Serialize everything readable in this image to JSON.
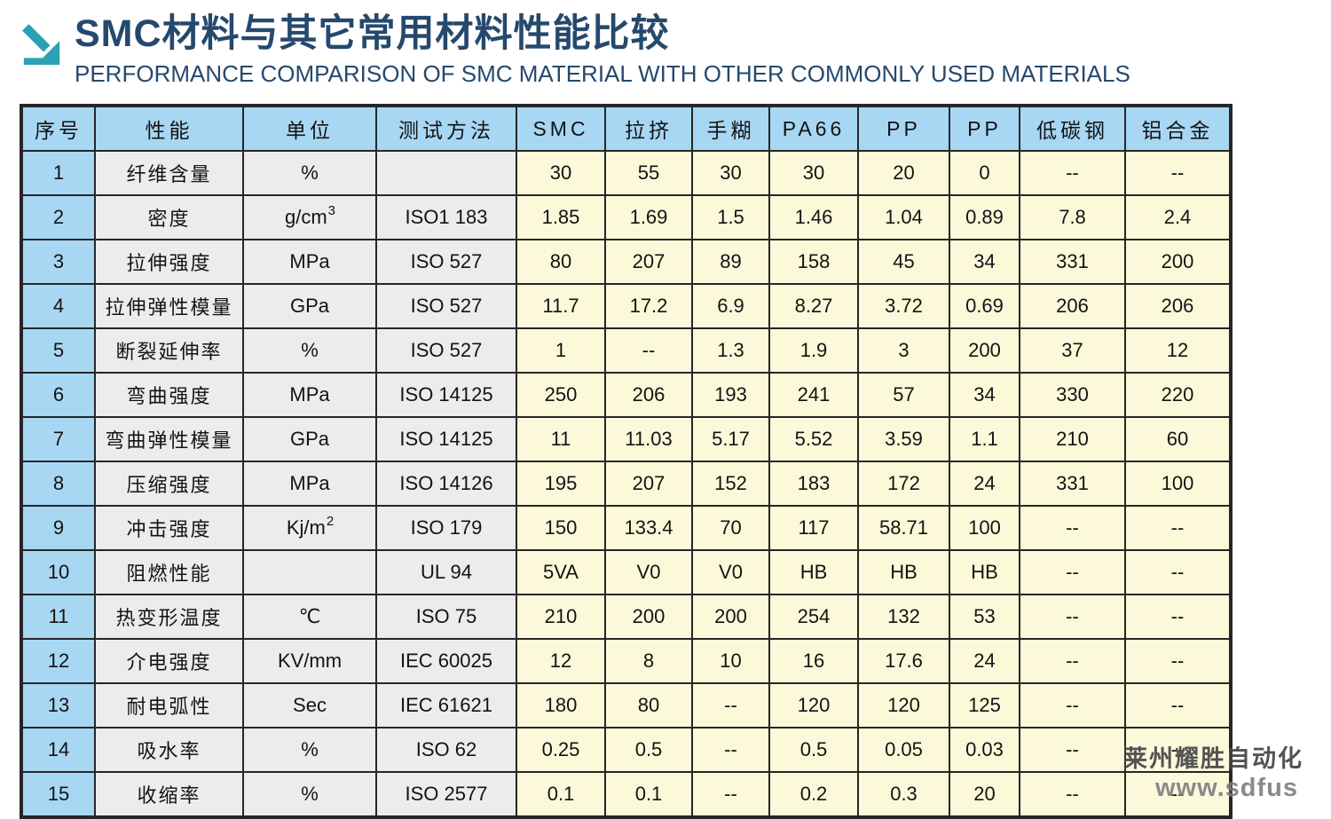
{
  "header": {
    "title": "SMC材料与其它常用材料性能比较",
    "subtitle": "PERFORMANCE COMPARISON OF SMC MATERIAL WITH OTHER COMMONLY USED MATERIALS",
    "title_color": "#25496d",
    "arrow_icon": "diagonal-arrow-down-right",
    "arrow_color": "#2aa2b4"
  },
  "table": {
    "columns": [
      "序号",
      "性能",
      "单位",
      "测试方法",
      "SMC",
      "拉挤",
      "手糊",
      "PA66",
      "PP",
      "PP",
      "低碳钢",
      "铝合金"
    ],
    "colors": {
      "header_bg": "#a8d7f3",
      "label_bg": "#ececec",
      "value_bg": "#fcf9da",
      "border": "#262626"
    },
    "rows": [
      {
        "no": "1",
        "property": "纤维含量",
        "unit": "%",
        "unit_sup": "",
        "method": "",
        "values": [
          "30",
          "55",
          "30",
          "30",
          "20",
          "0",
          "--",
          "--"
        ]
      },
      {
        "no": "2",
        "property": "密度",
        "unit": "g/cm",
        "unit_sup": "3",
        "method": "ISO1 183",
        "values": [
          "1.85",
          "1.69",
          "1.5",
          "1.46",
          "1.04",
          "0.89",
          "7.8",
          "2.4"
        ]
      },
      {
        "no": "3",
        "property": "拉伸强度",
        "unit": "MPa",
        "unit_sup": "",
        "method": "ISO 527",
        "values": [
          "80",
          "207",
          "89",
          "158",
          "45",
          "34",
          "331",
          "200"
        ]
      },
      {
        "no": "4",
        "property": "拉伸弹性模量",
        "unit": "GPa",
        "unit_sup": "",
        "method": "ISO 527",
        "values": [
          "11.7",
          "17.2",
          "6.9",
          "8.27",
          "3.72",
          "0.69",
          "206",
          "206"
        ]
      },
      {
        "no": "5",
        "property": "断裂延伸率",
        "unit": "%",
        "unit_sup": "",
        "method": "ISO 527",
        "values": [
          "1",
          "--",
          "1.3",
          "1.9",
          "3",
          "200",
          "37",
          "12"
        ]
      },
      {
        "no": "6",
        "property": "弯曲强度",
        "unit": "MPa",
        "unit_sup": "",
        "method": "ISO 14125",
        "values": [
          "250",
          "206",
          "193",
          "241",
          "57",
          "34",
          "330",
          "220"
        ]
      },
      {
        "no": "7",
        "property": "弯曲弹性模量",
        "unit": "GPa",
        "unit_sup": "",
        "method": "ISO 14125",
        "values": [
          "11",
          "11.03",
          "5.17",
          "5.52",
          "3.59",
          "1.1",
          "210",
          "60"
        ]
      },
      {
        "no": "8",
        "property": "压缩强度",
        "unit": "MPa",
        "unit_sup": "",
        "method": "ISO 14126",
        "values": [
          "195",
          "207",
          "152",
          "183",
          "172",
          "24",
          "331",
          "100"
        ]
      },
      {
        "no": "9",
        "property": "冲击强度",
        "unit": "Kj/m",
        "unit_sup": "2",
        "method": "ISO 179",
        "values": [
          "150",
          "133.4",
          "70",
          "117",
          "58.71",
          "100",
          "--",
          "--"
        ]
      },
      {
        "no": "10",
        "property": "阻燃性能",
        "unit": "",
        "unit_sup": "",
        "method": "UL 94",
        "values": [
          "5VA",
          "V0",
          "V0",
          "HB",
          "HB",
          "HB",
          "--",
          "--"
        ]
      },
      {
        "no": "11",
        "property": "热变形温度",
        "unit": "℃",
        "unit_sup": "",
        "method": "ISO 75",
        "values": [
          "210",
          "200",
          "200",
          "254",
          "132",
          "53",
          "--",
          "--"
        ]
      },
      {
        "no": "12",
        "property": "介电强度",
        "unit": "KV/mm",
        "unit_sup": "",
        "method": "IEC 60025",
        "values": [
          "12",
          "8",
          "10",
          "16",
          "17.6",
          "24",
          "--",
          "--"
        ]
      },
      {
        "no": "13",
        "property": "耐电弧性",
        "unit": "Sec",
        "unit_sup": "",
        "method": "IEC 61621",
        "values": [
          "180",
          "80",
          "--",
          "120",
          "120",
          "125",
          "--",
          "--"
        ]
      },
      {
        "no": "14",
        "property": "吸水率",
        "unit": "%",
        "unit_sup": "",
        "method": "ISO 62",
        "values": [
          "0.25",
          "0.5",
          "--",
          "0.5",
          "0.05",
          "0.03",
          "--",
          "--"
        ]
      },
      {
        "no": "15",
        "property": "收缩率",
        "unit": "%",
        "unit_sup": "",
        "method": "ISO 2577",
        "values": [
          "0.1",
          "0.1",
          "--",
          "0.2",
          "0.3",
          "20",
          "--",
          "--"
        ]
      }
    ]
  },
  "watermark": {
    "line1": "莱州耀胜自动化",
    "line2": "www.sdfus"
  }
}
